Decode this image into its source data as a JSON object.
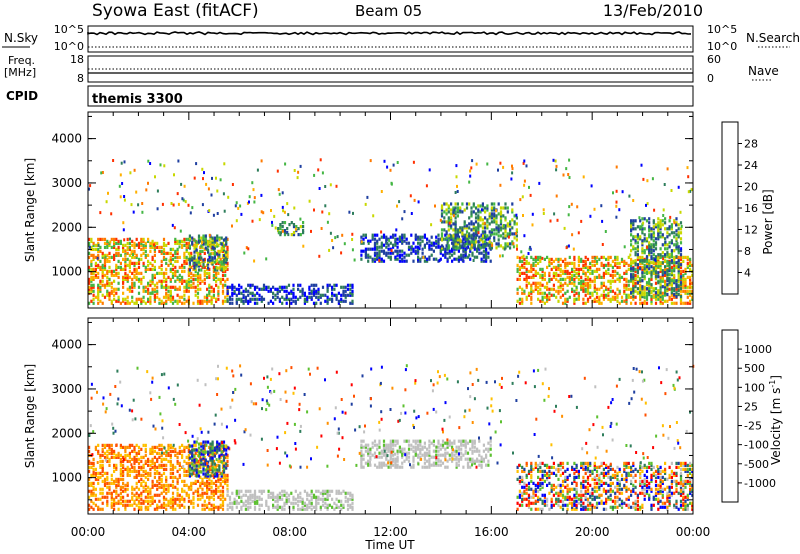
{
  "header": {
    "station": "Syowa East (fitACF)",
    "beam": "Beam 05",
    "date": "13/Feb/2010"
  },
  "strips": {
    "nsky_label": "N.Sky",
    "nsky_ticks": [
      "10^5",
      "10^0"
    ],
    "nsearch_label": "N.Search",
    "nsearch_ticks": [
      "10^5",
      "10^0"
    ],
    "freq_label": "Freq.",
    "freq_unit": "[MHz]",
    "freq_ticks": [
      "18",
      "8"
    ],
    "nave_label": "Nave",
    "nave_ticks": [
      "60",
      "0"
    ],
    "cpid_label": "CPID",
    "cpid_value": "themis 3300"
  },
  "chart_data": [
    {
      "type": "heatmap",
      "panel": "power",
      "ylabel": "Slant Range [km]",
      "xlabel": "Time UT",
      "xlim": [
        0,
        24
      ],
      "ylim": [
        180,
        4600
      ],
      "x_ticks": [
        "00:00",
        "04:00",
        "08:00",
        "12:00",
        "16:00",
        "20:00",
        "00:00"
      ],
      "y_ticks": [
        1000,
        2000,
        3000,
        4000
      ],
      "colorbar": {
        "label": "Power [dB]",
        "ticks": [
          "4",
          "8",
          "12",
          "16",
          "20",
          "24",
          "28"
        ],
        "colors": [
          "#0000ff",
          "#1f3fa0",
          "#2e7d5b",
          "#44b644",
          "#c8d800",
          "#ffb000",
          "#ff7a00",
          "#ff3000"
        ]
      },
      "echo_regions": [
        {
          "t0": 0.0,
          "t1": 5.5,
          "r0": 250,
          "r1": 1700,
          "level": "high"
        },
        {
          "t0": 4.0,
          "t1": 5.5,
          "r0": 1000,
          "r1": 1800,
          "level": "medium"
        },
        {
          "t0": 5.5,
          "t1": 10.5,
          "r0": 250,
          "r1": 700,
          "level": "low"
        },
        {
          "t0": 7.5,
          "t1": 8.5,
          "r0": 1800,
          "r1": 2100,
          "level": "medium"
        },
        {
          "t0": 10.8,
          "t1": 16.0,
          "r0": 1200,
          "r1": 1800,
          "level": "low"
        },
        {
          "t0": 14.0,
          "t1": 17.0,
          "r0": 1500,
          "r1": 2500,
          "level": "medium"
        },
        {
          "t0": 17.0,
          "t1": 24.0,
          "r0": 250,
          "r1": 1300,
          "level": "high"
        },
        {
          "t0": 21.5,
          "t1": 23.5,
          "r0": 400,
          "r1": 2200,
          "level": "medium"
        }
      ]
    },
    {
      "type": "heatmap",
      "panel": "velocity",
      "ylabel": "Slant Range [km]",
      "xlabel": "Time UT",
      "xlim": [
        0,
        24
      ],
      "ylim": [
        180,
        4600
      ],
      "x_ticks": [
        "00:00",
        "04:00",
        "08:00",
        "12:00",
        "16:00",
        "20:00",
        "00:00"
      ],
      "y_ticks": [
        1000,
        2000,
        3000,
        4000
      ],
      "colorbar": {
        "label": "Velocity [m s",
        "label_sup": "-1",
        "label_tail": "]",
        "ticks": [
          "1000",
          "500",
          "100",
          "25",
          "-25",
          "-100",
          "-500",
          "-1000"
        ],
        "colors": [
          "#0000ff",
          "#1f3fa0",
          "#2e7d5b",
          "#5cc030",
          "#c0c0c0",
          "#ffc000",
          "#ff9000",
          "#ff5000",
          "#ff0000"
        ]
      },
      "echo_regions": [
        {
          "t0": 0.0,
          "t1": 5.5,
          "r0": 250,
          "r1": 1700,
          "level": "negative"
        },
        {
          "t0": 4.0,
          "t1": 5.5,
          "r0": 1000,
          "r1": 1800,
          "level": "positive"
        },
        {
          "t0": 5.5,
          "t1": 10.5,
          "r0": 250,
          "r1": 700,
          "level": "ground"
        },
        {
          "t0": 10.8,
          "t1": 16.0,
          "r0": 1200,
          "r1": 1800,
          "level": "ground"
        },
        {
          "t0": 17.0,
          "t1": 24.0,
          "r0": 250,
          "r1": 1300,
          "level": "mixed"
        }
      ]
    }
  ],
  "axis_labels": {
    "x_ticks": [
      "00:00",
      "04:00",
      "08:00",
      "12:00",
      "16:00",
      "20:00",
      "00:00"
    ],
    "xlabel": "Time UT"
  }
}
